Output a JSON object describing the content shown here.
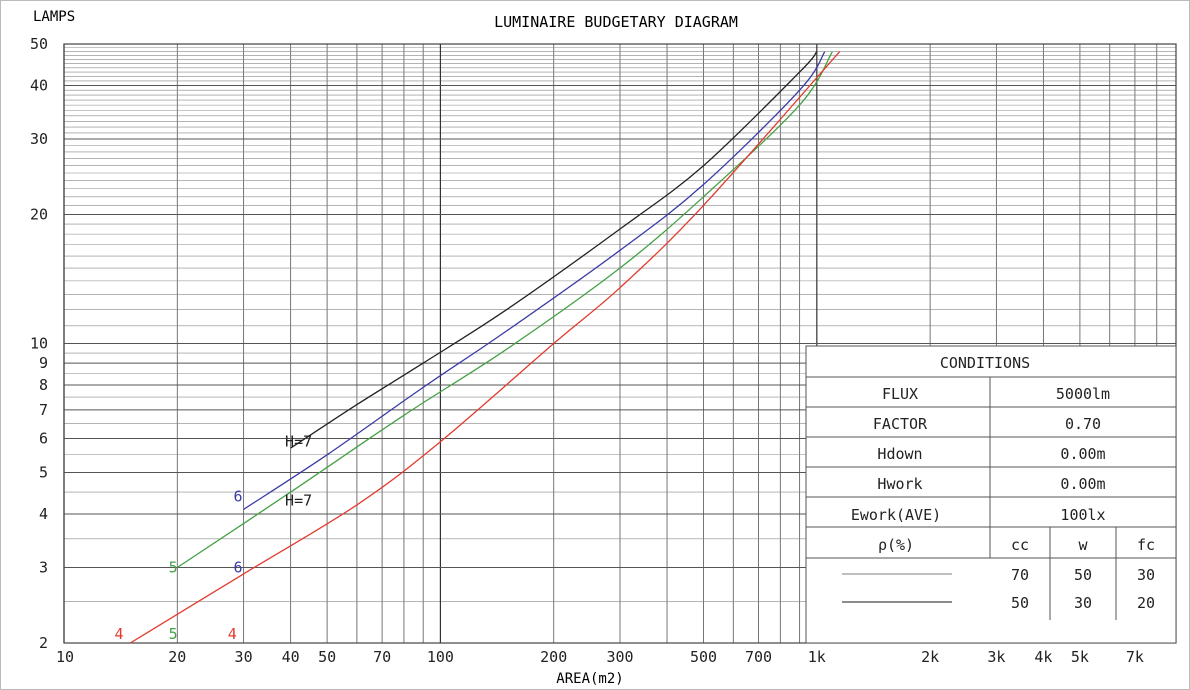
{
  "chart_data": {
    "type": "line",
    "title": "LUMINAIRE BUDGETARY DIAGRAM",
    "xlabel": "AREA(m2)",
    "ylabel": "LAMPS",
    "xscale": "log",
    "yscale": "log",
    "xlim": [
      10,
      9000
    ],
    "ylim": [
      2,
      50
    ],
    "grid": true,
    "x_ticks": [
      {
        "v": 10,
        "label": "10"
      },
      {
        "v": 20,
        "label": "20"
      },
      {
        "v": 30,
        "label": "30"
      },
      {
        "v": 40,
        "label": "40"
      },
      {
        "v": 50,
        "label": "50"
      },
      {
        "v": 70,
        "label": "70"
      },
      {
        "v": 100,
        "label": "100"
      },
      {
        "v": 200,
        "label": "200"
      },
      {
        "v": 300,
        "label": "300"
      },
      {
        "v": 500,
        "label": "500"
      },
      {
        "v": 700,
        "label": "700"
      },
      {
        "v": 1000,
        "label": "1k"
      },
      {
        "v": 2000,
        "label": "2k"
      },
      {
        "v": 3000,
        "label": "3k"
      },
      {
        "v": 4000,
        "label": "4k"
      },
      {
        "v": 5000,
        "label": "5k"
      },
      {
        "v": 7000,
        "label": "7k"
      }
    ],
    "y_ticks": [
      {
        "v": 2,
        "label": "2"
      },
      {
        "v": 3,
        "label": "3"
      },
      {
        "v": 4,
        "label": "4"
      },
      {
        "v": 5,
        "label": "5"
      },
      {
        "v": 6,
        "label": "6"
      },
      {
        "v": 7,
        "label": "7"
      },
      {
        "v": 8,
        "label": "8"
      },
      {
        "v": 9,
        "label": "9"
      },
      {
        "v": 10,
        "label": "10"
      },
      {
        "v": 20,
        "label": "20"
      },
      {
        "v": 30,
        "label": "30"
      },
      {
        "v": 40,
        "label": "40"
      },
      {
        "v": 50,
        "label": "50"
      }
    ],
    "series": [
      {
        "color": "#222222",
        "x": [
          40,
          60,
          90,
          150,
          300,
          500,
          900,
          1000
        ],
        "y": [
          5.7,
          7.2,
          9.0,
          12.0,
          18.5,
          26.0,
          43.0,
          48.0
        ]
      },
      {
        "color": "#3a3aa8",
        "x": [
          30,
          50,
          90,
          150,
          300,
          500,
          900,
          1050
        ],
        "y": [
          4.1,
          5.5,
          7.9,
          10.7,
          16.5,
          23.5,
          39.0,
          48.0
        ]
      },
      {
        "color": "#45a045",
        "x": [
          20,
          40,
          80,
          150,
          300,
          500,
          900,
          1100
        ],
        "y": [
          3.0,
          4.5,
          6.8,
          9.7,
          15.0,
          22.0,
          36.0,
          48.0
        ]
      },
      {
        "color": "#e23a2e",
        "x": [
          15,
          30,
          60,
          100,
          200,
          300,
          500,
          1150
        ],
        "y": [
          2.0,
          2.9,
          4.2,
          5.9,
          10.0,
          13.5,
          21.0,
          48.0
        ]
      }
    ],
    "curve_labels": [
      {
        "text": "H=7",
        "x": 42,
        "y": 5.9,
        "color": "#222222"
      },
      {
        "text": "H=7",
        "x": 42,
        "y": 4.3,
        "color": "#222222"
      },
      {
        "text": "6",
        "x": 29,
        "y": 4.4,
        "color": "#3a3aa8"
      },
      {
        "text": "6",
        "x": 29,
        "y": 3.0,
        "color": "#3a3aa8"
      },
      {
        "text": "5",
        "x": 19.5,
        "y": 3.0,
        "color": "#45a045"
      },
      {
        "text": "5",
        "x": 19.5,
        "y": 2.1,
        "color": "#45a045"
      },
      {
        "text": "4",
        "x": 14,
        "y": 2.1,
        "color": "#e23a2e"
      },
      {
        "text": "4",
        "x": 28,
        "y": 2.1,
        "color": "#e23a2e"
      }
    ]
  },
  "conditions": {
    "title": "CONDITIONS",
    "rows": [
      {
        "label": "FLUX",
        "value": "5000lm"
      },
      {
        "label": "FACTOR",
        "value": "0.70"
      },
      {
        "label": "Hdown",
        "value": "0.00m"
      },
      {
        "label": "Hwork",
        "value": "0.00m"
      },
      {
        "label": "Ework(AVE)",
        "value": "100lx"
      }
    ],
    "rho_label": "ρ(%)",
    "rho_headers": [
      "cc",
      "w",
      "fc"
    ],
    "rho_rows": [
      {
        "line_color": "#aaaaaa",
        "values": [
          "70",
          "50",
          "30"
        ]
      },
      {
        "line_color": "#666666",
        "values": [
          "50",
          "30",
          "20"
        ]
      }
    ]
  }
}
